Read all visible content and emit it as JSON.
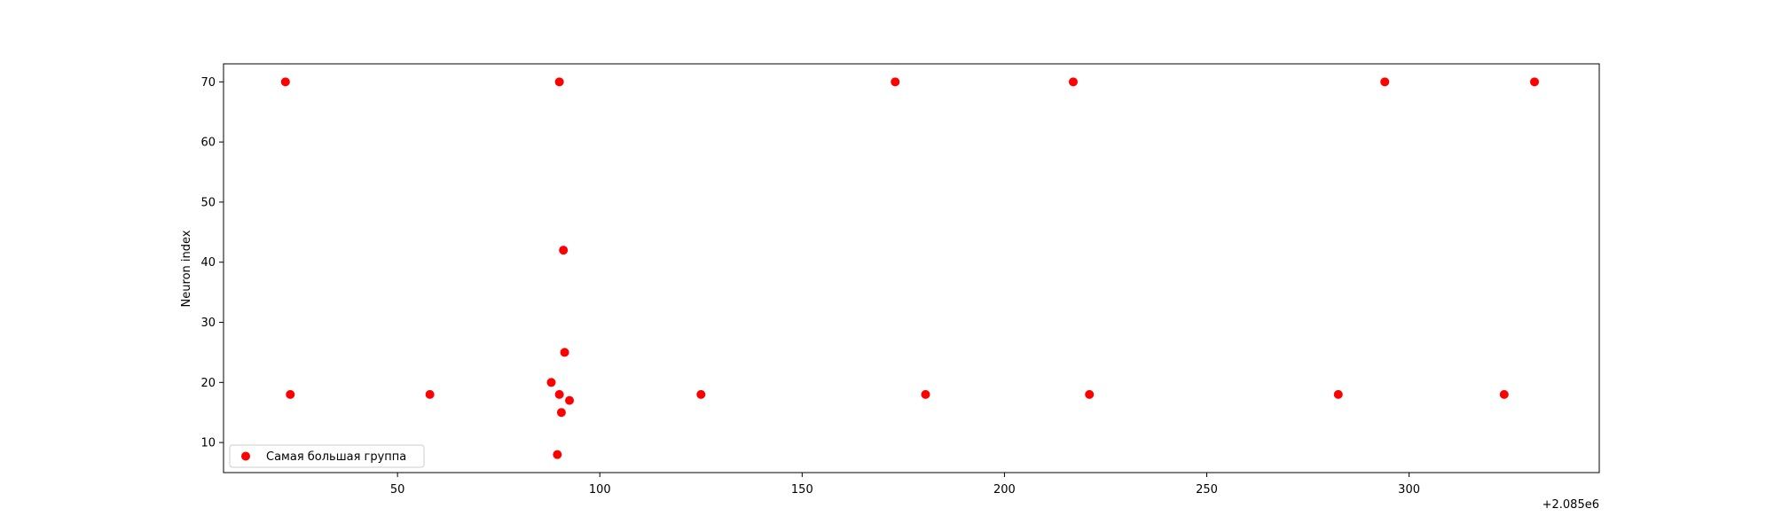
{
  "chart_data": {
    "type": "scatter",
    "title": "",
    "xlabel": "",
    "ylabel": "Neuron index",
    "x_offset_label": "+2.085e6",
    "xlim": [
      7,
      347
    ],
    "ylim": [
      5,
      73
    ],
    "xticks": [
      50,
      100,
      150,
      200,
      250,
      300
    ],
    "yticks": [
      10,
      20,
      30,
      40,
      50,
      60,
      70
    ],
    "grid": false,
    "legend_position": "lower-left",
    "series": [
      {
        "name": "Самая большая группа",
        "color": "#ff0000",
        "points": [
          {
            "x": 22.3,
            "y": 70
          },
          {
            "x": 23.5,
            "y": 18
          },
          {
            "x": 58,
            "y": 18
          },
          {
            "x": 88,
            "y": 20
          },
          {
            "x": 89.5,
            "y": 8
          },
          {
            "x": 90,
            "y": 70
          },
          {
            "x": 90,
            "y": 18
          },
          {
            "x": 90.5,
            "y": 15
          },
          {
            "x": 91,
            "y": 42
          },
          {
            "x": 91.3,
            "y": 25
          },
          {
            "x": 92.5,
            "y": 17
          },
          {
            "x": 125,
            "y": 18
          },
          {
            "x": 173,
            "y": 70
          },
          {
            "x": 180.5,
            "y": 18
          },
          {
            "x": 217,
            "y": 70
          },
          {
            "x": 221,
            "y": 18
          },
          {
            "x": 282.5,
            "y": 18
          },
          {
            "x": 294,
            "y": 70
          },
          {
            "x": 323.5,
            "y": 18
          },
          {
            "x": 331,
            "y": 70
          }
        ]
      }
    ]
  }
}
